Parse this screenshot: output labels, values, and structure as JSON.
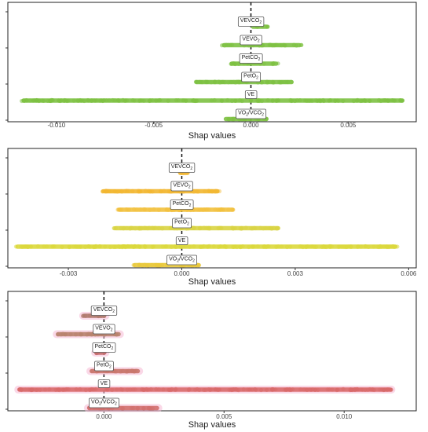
{
  "chart_data": [
    {
      "type": "scatter",
      "xlabel": "Shap values",
      "xlim": [
        -0.0125,
        0.0085
      ],
      "xticks": [
        -0.01,
        -0.005,
        0.0,
        0.005
      ],
      "xtick_labels": [
        "-0.010",
        "-0.005",
        "0.000",
        "0.005"
      ],
      "features": [
        {
          "label": "VEVCO2",
          "base": "VEVCO",
          "sub": "2",
          "range": [
            0.0,
            0.0009
          ],
          "color": "#7dc142",
          "halo": false
        },
        {
          "label": "VEVO2",
          "base": "VEVO",
          "sub": "2",
          "range": [
            -0.0015,
            0.0026
          ],
          "color": "#7dc142",
          "halo": false
        },
        {
          "label": "PetCO2",
          "base": "PetCO",
          "sub": "2",
          "range": [
            -0.0011,
            0.0014
          ],
          "color": "#7dc142",
          "halo": false
        },
        {
          "label": "PetO2",
          "base": "PetO",
          "sub": "2",
          "range": [
            -0.0029,
            0.0022
          ],
          "color": "#7dc142",
          "halo": false
        },
        {
          "label": "VE",
          "base": "VE",
          "sub": "",
          "range": [
            -0.0118,
            0.0079
          ],
          "color": "#7dc142",
          "halo": false
        },
        {
          "label": "VO2/VCO2",
          "base": "VO",
          "sub": "2",
          "base2": "/VCO",
          "sub2": "2",
          "range": [
            -0.0014,
            0.0009
          ],
          "color": "#7dc142",
          "halo": false
        }
      ]
    },
    {
      "type": "scatter",
      "xlabel": "Shap values",
      "xlim": [
        -0.0046,
        0.0062
      ],
      "xticks": [
        -0.003,
        0.0,
        0.003,
        0.006
      ],
      "xtick_labels": [
        "-0.003",
        "0.000",
        "0.003",
        "0.006"
      ],
      "features": [
        {
          "label": "VEVCO2",
          "base": "VEVCO",
          "sub": "2",
          "range": [
            -0.0001,
            0.0002
          ],
          "color": "#f2b731",
          "halo": false
        },
        {
          "label": "VEVO2",
          "base": "VEVO",
          "sub": "2",
          "range": [
            -0.0021,
            0.001
          ],
          "color": "#f2b731",
          "halo": false
        },
        {
          "label": "PetCO2",
          "base": "PetCO",
          "sub": "2",
          "range": [
            -0.0017,
            0.0014
          ],
          "color": "#f2c13f",
          "halo": false
        },
        {
          "label": "PetO2",
          "base": "PetO",
          "sub": "2",
          "range": [
            -0.0018,
            0.0026
          ],
          "color": "#d9d443",
          "halo": false
        },
        {
          "label": "VE",
          "base": "VE",
          "sub": "",
          "range": [
            -0.0044,
            0.0057
          ],
          "color": "#dbd83c",
          "halo": false
        },
        {
          "label": "VO2/VCO2",
          "base": "VO",
          "sub": "2",
          "base2": "/VCO",
          "sub2": "2",
          "range": [
            -0.0013,
            0.0005
          ],
          "color": "#e9c93a",
          "halo": false
        }
      ]
    },
    {
      "type": "scatter",
      "xlabel": "Shap values",
      "xlim": [
        -0.004,
        0.013
      ],
      "xticks": [
        0.0,
        0.005,
        0.01
      ],
      "xtick_labels": [
        "0.000",
        "0.005",
        "0.010"
      ],
      "features": [
        {
          "label": "VEVCO2",
          "base": "VEVCO",
          "sub": "2",
          "range": [
            -0.0009,
            0.0001
          ],
          "color": "#b07a6e",
          "halo": true
        },
        {
          "label": "VEVO2",
          "base": "VEVO",
          "sub": "2",
          "range": [
            -0.002,
            0.0007
          ],
          "color": "#b8836e",
          "halo": true
        },
        {
          "label": "PetCO2",
          "base": "PetCO",
          "sub": "2",
          "range": [
            -0.0004,
            0.0001
          ],
          "color": "#c46b6b",
          "halo": true
        },
        {
          "label": "PetO2",
          "base": "PetO",
          "sub": "2",
          "range": [
            -0.0006,
            0.0015
          ],
          "color": "#c9766c",
          "halo": true
        },
        {
          "label": "VE",
          "base": "VE",
          "sub": "",
          "range": [
            -0.0036,
            0.012
          ],
          "color": "#d86a6a",
          "halo": true
        },
        {
          "label": "VO2/VCO2",
          "base": "VO",
          "sub": "2",
          "base2": "/VCO",
          "sub2": "2",
          "range": [
            -0.0007,
            0.0023
          ],
          "color": "#d2706e",
          "halo": true
        }
      ]
    }
  ]
}
